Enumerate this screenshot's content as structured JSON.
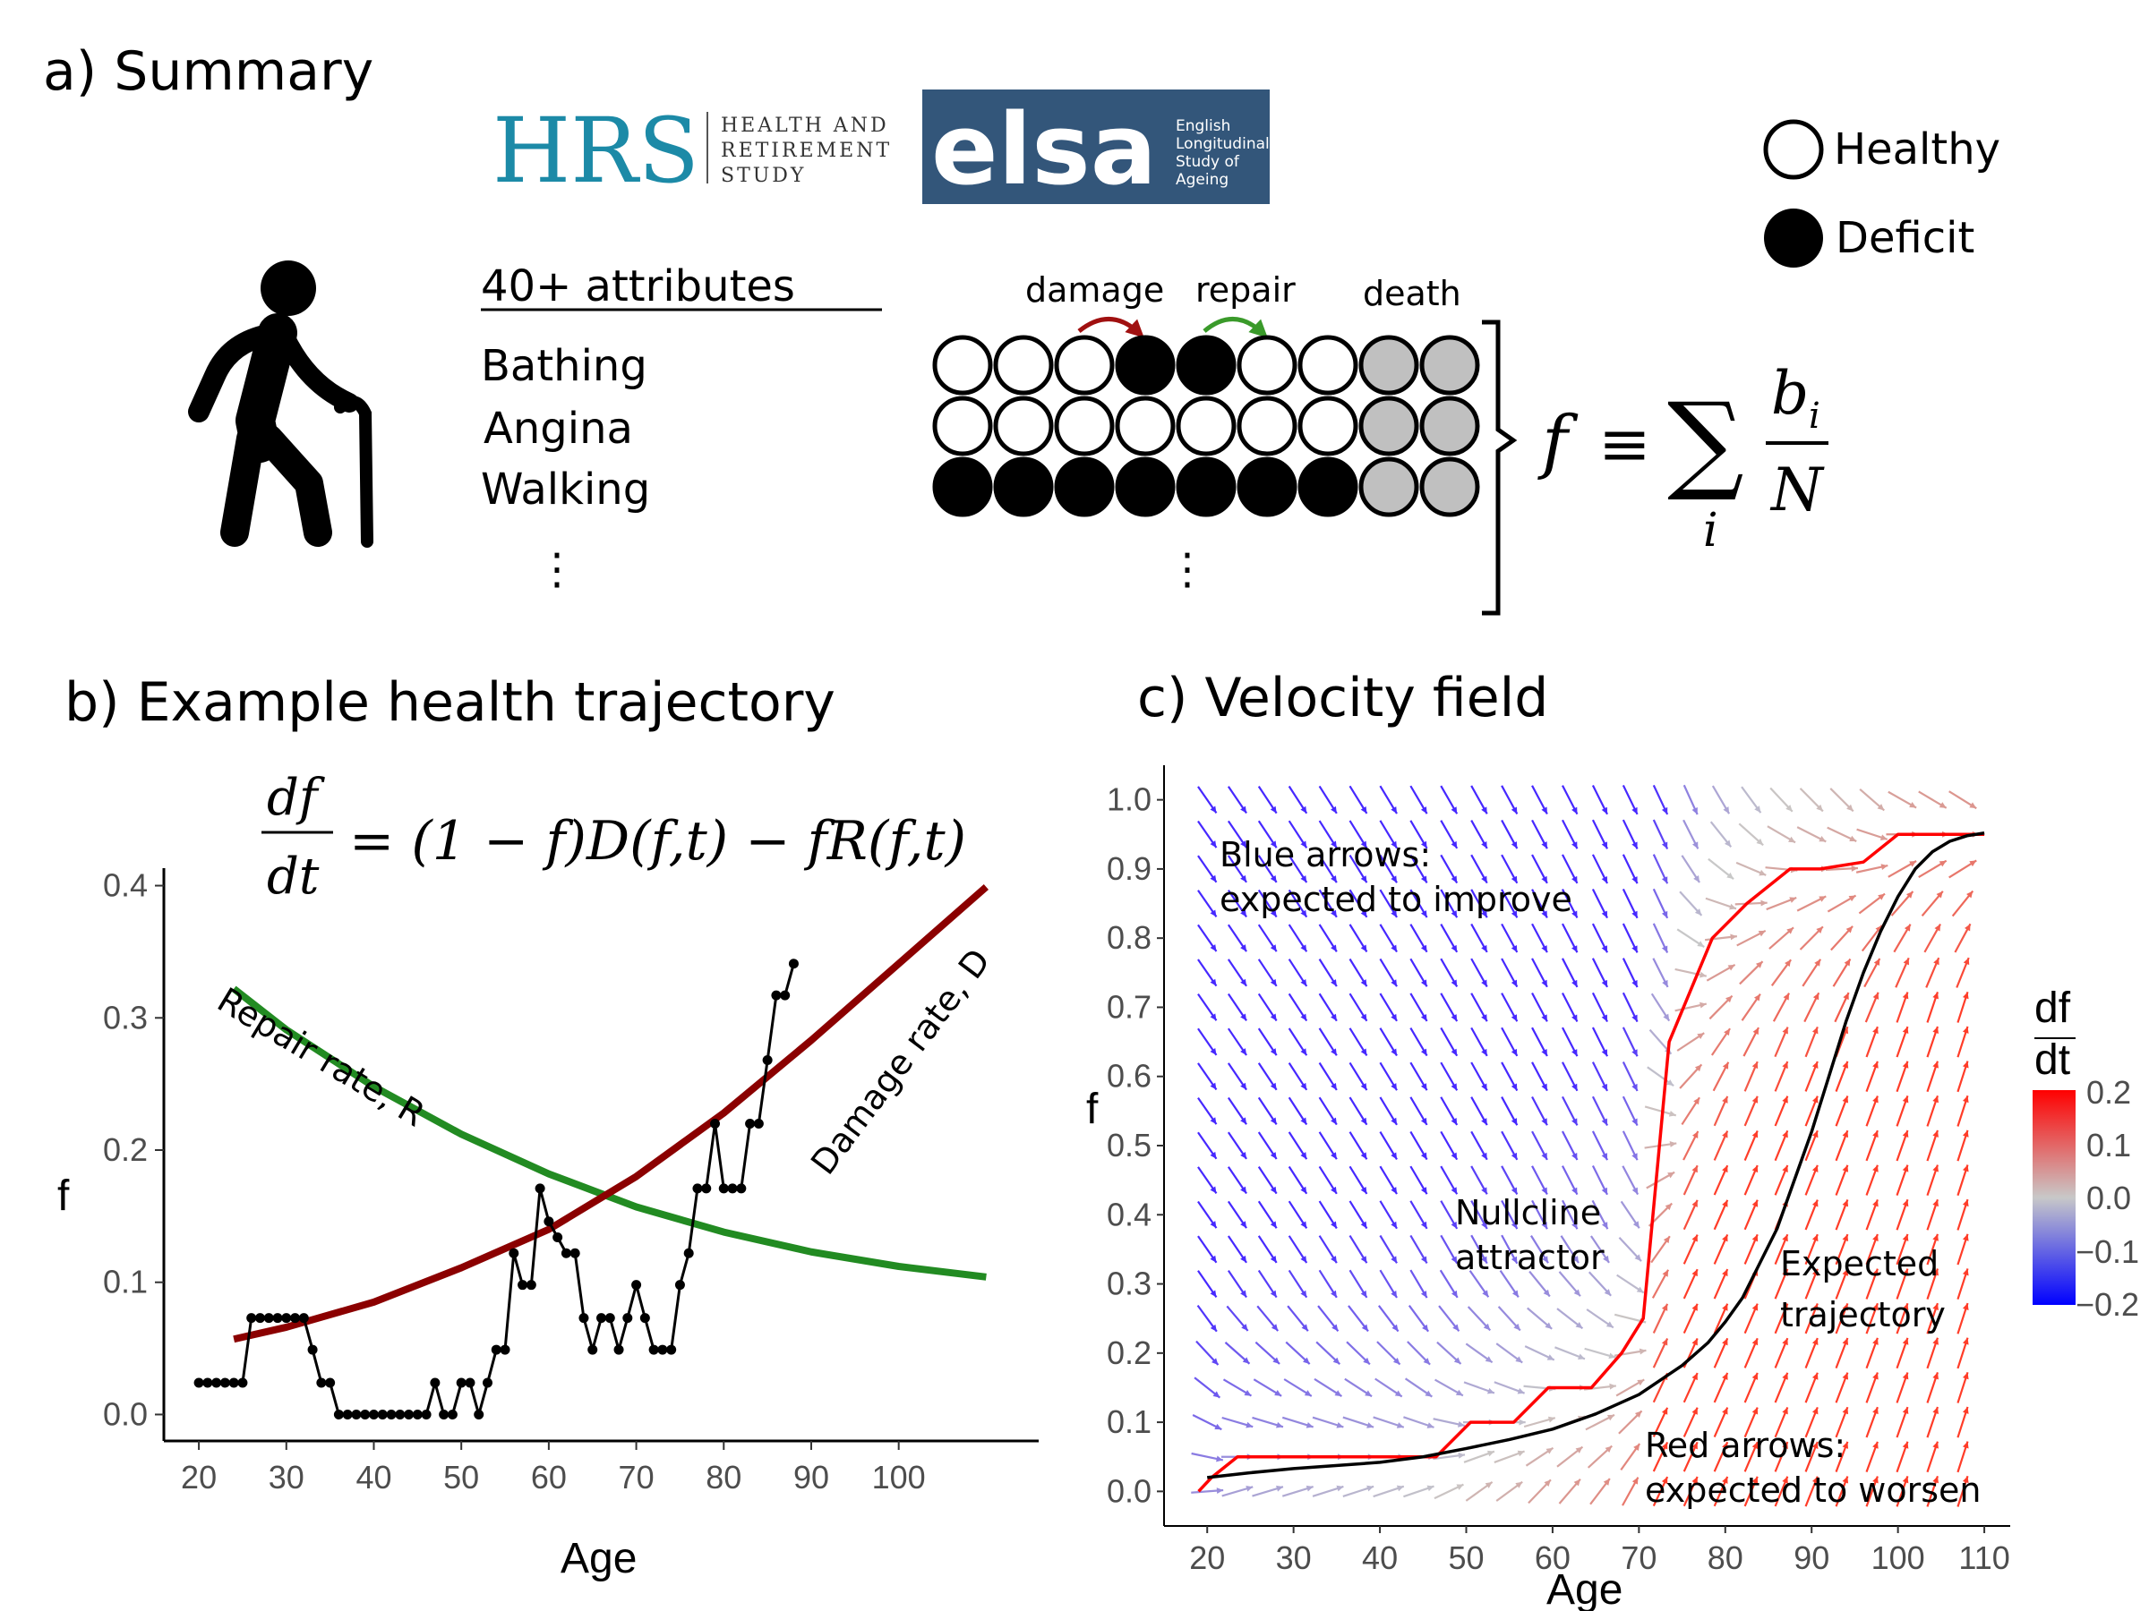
{
  "panels": {
    "a": {
      "title": "a) Summary",
      "logos": {
        "hrs": {
          "text": "HRS",
          "subtitle": [
            "HEALTH AND",
            "RETIREMENT",
            "STUDY"
          ],
          "color": "#1c8aa7"
        },
        "elsa": {
          "text": "elsa",
          "subtitle": [
            "English",
            "Longitudinal",
            "Study of",
            "Ageing"
          ],
          "bg": "#33567a"
        }
      },
      "attributes": {
        "heading": "40+ attributes",
        "items": [
          "Bathing",
          "Angina",
          "Walking"
        ],
        "ellipsis": "⋮"
      },
      "actions": {
        "damage": "damage",
        "repair": "repair",
        "death": "death"
      },
      "legend": {
        "healthy": "Healthy",
        "deficit": "Deficit"
      },
      "formula": {
        "f": "f",
        "equiv": "≡",
        "sum": "∑",
        "index": "i",
        "num": "b",
        "num_sub": "i",
        "den": "N"
      },
      "grid_rows": [
        [
          "healthy",
          "healthy",
          "healthy",
          "deficit",
          "deficit",
          "healthy",
          "healthy",
          "death",
          "death"
        ],
        [
          "healthy",
          "healthy",
          "healthy",
          "healthy",
          "healthy",
          "healthy",
          "healthy",
          "death",
          "death"
        ],
        [
          "deficit",
          "deficit",
          "deficit",
          "deficit",
          "deficit",
          "deficit",
          "deficit",
          "death",
          "death"
        ]
      ],
      "colors": {
        "damage_arrow": "#a01010",
        "repair_arrow": "#3a9a2a",
        "death_fill": "#c0c0c0"
      }
    },
    "b": {
      "title": "b) Example health trajectory",
      "equation": {
        "lhs_num": "df",
        "lhs_den": "dt",
        "rhs": "= (1 − f)D(f,t) − fR(f,t)"
      },
      "repair_label": "Repair rate, R",
      "damage_label": "Damage rate, D"
    },
    "c": {
      "title": "c) Velocity field",
      "ann_blue": [
        "Blue arrows:",
        "expected to improve"
      ],
      "ann_null": [
        "Nullcline",
        "attractor"
      ],
      "ann_expected": [
        "Expected",
        "trajectory"
      ],
      "ann_red": [
        "Red arrows:",
        "expected to worsen"
      ],
      "colorbar": {
        "title_num": "df",
        "title_den": "dt",
        "ticks": [
          "0.2",
          "0.1",
          "0.0",
          "−0.1",
          "−0.2"
        ]
      }
    }
  },
  "chart_data": [
    {
      "type": "line",
      "title": "b) Example health trajectory",
      "xlabel": "Age",
      "ylabel": "f",
      "xlim": [
        16,
        116
      ],
      "ylim": [
        -0.02,
        0.42
      ],
      "xticks": [
        "20",
        "30",
        "40",
        "50",
        "60",
        "70",
        "80",
        "90",
        "100"
      ],
      "yticks": [
        "0.0",
        "0.1",
        "0.2",
        "0.3",
        "0.4"
      ],
      "series": [
        {
          "name": "Repair rate, R",
          "color": "#228b22",
          "x": [
            24,
            30,
            40,
            50,
            60,
            70,
            80,
            90,
            100,
            110
          ],
          "y": [
            0.322,
            0.291,
            0.248,
            0.212,
            0.182,
            0.157,
            0.138,
            0.123,
            0.112,
            0.104
          ]
        },
        {
          "name": "Damage rate, D",
          "color": "#8b0000",
          "x": [
            24,
            30,
            40,
            50,
            60,
            70,
            80,
            90,
            100,
            110
          ],
          "y": [
            0.057,
            0.066,
            0.085,
            0.111,
            0.14,
            0.18,
            0.228,
            0.283,
            0.341,
            0.399
          ]
        },
        {
          "name": "Example trajectory",
          "color": "#000000",
          "x": [
            20,
            21,
            22,
            23,
            24,
            25,
            26,
            27,
            28,
            29,
            30,
            31,
            32,
            33,
            34,
            35,
            36,
            37,
            38,
            39,
            40,
            41,
            42,
            43,
            44,
            45,
            46,
            47,
            48,
            49,
            50,
            51,
            52,
            53,
            54,
            55,
            56,
            57,
            58,
            59,
            60,
            61,
            62,
            63,
            64,
            65,
            66,
            67,
            68,
            69,
            70,
            71,
            72,
            73,
            74,
            75,
            76,
            77,
            78,
            79,
            80,
            81,
            82,
            83,
            84,
            85,
            86,
            87,
            88
          ],
          "y": [
            0.024,
            0.024,
            0.024,
            0.024,
            0.024,
            0.024,
            0.073,
            0.073,
            0.073,
            0.073,
            0.073,
            0.073,
            0.073,
            0.049,
            0.024,
            0.024,
            0,
            0,
            0,
            0,
            0,
            0,
            0,
            0,
            0,
            0,
            0,
            0.024,
            0,
            0,
            0.024,
            0.024,
            0,
            0.024,
            0.049,
            0.049,
            0.122,
            0.098,
            0.098,
            0.171,
            0.146,
            0.134,
            0.122,
            0.122,
            0.073,
            0.049,
            0.073,
            0.073,
            0.049,
            0.073,
            0.098,
            0.073,
            0.049,
            0.049,
            0.049,
            0.098,
            0.122,
            0.171,
            0.171,
            0.22,
            0.171,
            0.171,
            0.171,
            0.22,
            0.22,
            0.268,
            0.317,
            0.317,
            0.341
          ]
        }
      ]
    },
    {
      "type": "scatter",
      "title": "c) Velocity field",
      "xlabel": "Age",
      "ylabel": "f",
      "xlim": [
        15,
        113
      ],
      "ylim": [
        -0.05,
        1.05
      ],
      "xticks": [
        "20",
        "30",
        "40",
        "50",
        "60",
        "70",
        "80",
        "90",
        "100",
        "110"
      ],
      "yticks": [
        "0.0",
        "0.1",
        "0.2",
        "0.3",
        "0.4",
        "0.5",
        "0.6",
        "0.7",
        "0.8",
        "0.9",
        "1.0"
      ],
      "field_x_range": [
        20,
        110
      ],
      "field_y_range": [
        0.0,
        1.0
      ],
      "colorbar_range": [
        -0.2,
        0.2
      ],
      "series": [
        {
          "name": "Nullcline attractor",
          "color": "#ff0000",
          "x": [
            19,
            20.5,
            23.5,
            27,
            30,
            35,
            40,
            46.5,
            50.5,
            55.5,
            59.5,
            64.5,
            68,
            70.5,
            73.5,
            78.5,
            82.5,
            87.5,
            91,
            96,
            100,
            106,
            110
          ],
          "y": [
            0.0,
            0.02,
            0.05,
            0.05,
            0.05,
            0.05,
            0.05,
            0.05,
            0.1,
            0.1,
            0.15,
            0.15,
            0.2,
            0.25,
            0.65,
            0.8,
            0.85,
            0.9,
            0.9,
            0.91,
            0.95,
            0.95,
            0.95
          ]
        },
        {
          "name": "Expected trajectory",
          "color": "#000000",
          "x": [
            20,
            25,
            30,
            40,
            45,
            50,
            55,
            60,
            65,
            70,
            75,
            78,
            80,
            82,
            84,
            86,
            88,
            90,
            92,
            94,
            96,
            98,
            100,
            102,
            104,
            106,
            108,
            110
          ],
          "y": [
            0.02,
            0.027,
            0.033,
            0.042,
            0.05,
            0.062,
            0.075,
            0.09,
            0.112,
            0.14,
            0.182,
            0.215,
            0.245,
            0.28,
            0.33,
            0.38,
            0.45,
            0.52,
            0.6,
            0.68,
            0.75,
            0.81,
            0.86,
            0.9,
            0.925,
            0.94,
            0.948,
            0.952
          ]
        }
      ]
    }
  ]
}
